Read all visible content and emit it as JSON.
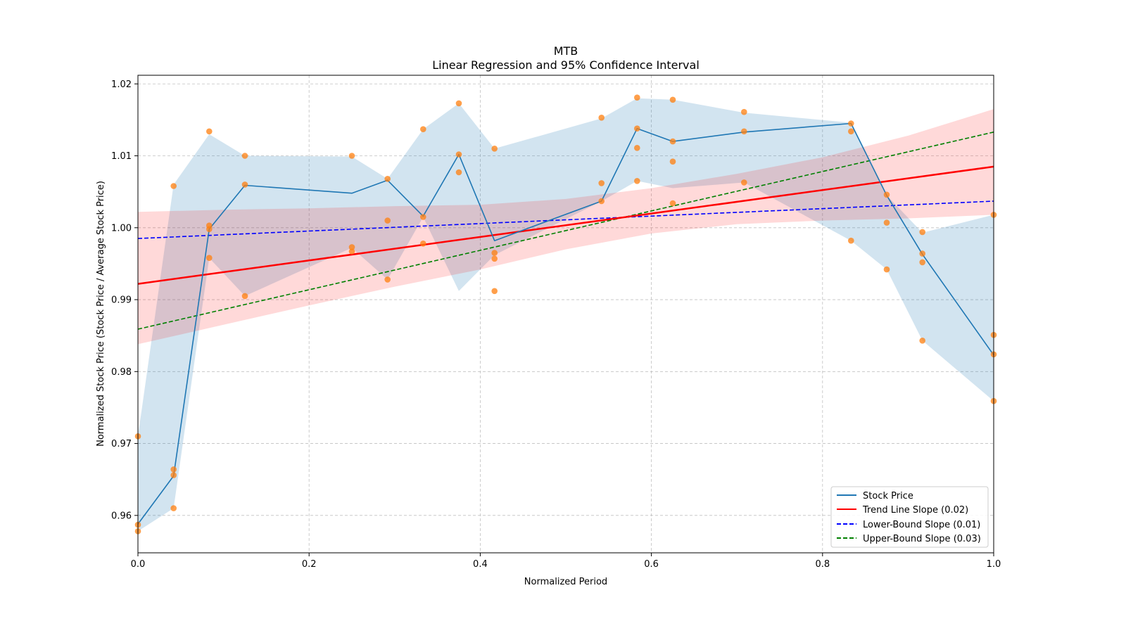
{
  "chart_data": {
    "type": "line",
    "title": "MTB",
    "subtitle": "Linear Regression and 95% Confidence Interval",
    "xlabel": "Normalized Period",
    "ylabel": "Normalized Stock Price (Stock Price / Average Stock Price)",
    "xlim": [
      0.0,
      1.0
    ],
    "ylim": [
      0.9548,
      1.0212
    ],
    "x_ticks": [
      "0.0",
      "0.2",
      "0.4",
      "0.6",
      "0.8",
      "1.0"
    ],
    "y_ticks": [
      "0.96",
      "0.97",
      "0.98",
      "0.99",
      "1.00",
      "1.01",
      "1.02"
    ],
    "grid": true,
    "legend_position": "lower-right",
    "colors": {
      "stock": "#1f77b4",
      "stock_band": "#1f77b4",
      "trend": "#ff0000",
      "trend_band": "#ff0000",
      "lower": "#0000ff",
      "upper": "#008000",
      "scatter": "#ff7f0e",
      "grid": "#b0b0b0"
    },
    "series": [
      {
        "name": "Stock Price",
        "kind": "line",
        "x": [
          0.0,
          0.0417,
          0.0833,
          0.125,
          0.25,
          0.2917,
          0.3333,
          0.375,
          0.4167,
          0.5417,
          0.5833,
          0.625,
          0.7083,
          0.8333,
          0.875,
          0.9167,
          1.0
        ],
        "y": [
          0.9588,
          0.9655,
          0.9998,
          1.0059,
          1.0048,
          1.0066,
          1.0016,
          1.0102,
          0.9982,
          1.0037,
          1.0138,
          1.012,
          1.0133,
          1.0145,
          1.0045,
          0.9963,
          0.9823
        ]
      },
      {
        "name": "Trend Line Slope (0.02)",
        "kind": "line",
        "x": [
          0.0,
          1.0
        ],
        "y": [
          0.9922,
          1.0085
        ]
      },
      {
        "name": "Lower-Bound Slope (0.01)",
        "kind": "dashed",
        "x": [
          0.0,
          1.0
        ],
        "y": [
          0.9985,
          1.0037
        ]
      },
      {
        "name": "Upper-Bound Slope (0.03)",
        "kind": "dashed",
        "x": [
          0.0,
          1.0
        ],
        "y": [
          0.9859,
          1.0133
        ]
      }
    ],
    "stock_band": {
      "x": [
        0.0,
        0.0417,
        0.0833,
        0.125,
        0.25,
        0.2917,
        0.3333,
        0.375,
        0.4167,
        0.5417,
        0.5833,
        0.625,
        0.7083,
        0.8333,
        0.875,
        0.9167,
        1.0
      ],
      "upper": [
        0.971,
        1.006,
        1.013,
        1.01,
        1.0099,
        1.0068,
        1.0137,
        1.0173,
        1.011,
        1.0152,
        1.018,
        1.0178,
        1.016,
        1.0146,
        1.0045,
        0.9993,
        1.0018
      ],
      "lower": [
        0.9578,
        0.961,
        0.9958,
        0.9905,
        0.9972,
        0.9928,
        1.0015,
        0.9912,
        0.9962,
        1.0037,
        1.0065,
        1.0055,
        1.0063,
        0.9982,
        0.9942,
        0.9843,
        0.9759
      ]
    },
    "trend_band": {
      "x": [
        0.0,
        0.1,
        0.2,
        0.3,
        0.4,
        0.5,
        0.6,
        0.7,
        0.8,
        0.9,
        1.0
      ],
      "upper": [
        1.0022,
        1.0025,
        1.0027,
        1.003,
        1.0032,
        1.004,
        1.0055,
        1.0075,
        1.0098,
        1.0128,
        1.0165
      ],
      "lower": [
        0.9838,
        0.9865,
        0.9892,
        0.9918,
        0.9942,
        0.997,
        0.9992,
        1.0005,
        1.001,
        1.0013,
        1.0018
      ]
    },
    "scatter": {
      "name": "Stock observations",
      "x": [
        0.0,
        0.0,
        0.0,
        0.0417,
        0.0417,
        0.0417,
        0.0417,
        0.0833,
        0.0833,
        0.0833,
        0.0833,
        0.125,
        0.125,
        0.125,
        0.25,
        0.25,
        0.25,
        0.2917,
        0.2917,
        0.2917,
        0.3333,
        0.3333,
        0.3333,
        0.375,
        0.375,
        0.375,
        0.4167,
        0.4167,
        0.4167,
        0.4167,
        0.5417,
        0.5417,
        0.5417,
        0.5833,
        0.5833,
        0.5833,
        0.5833,
        0.625,
        0.625,
        0.625,
        0.625,
        0.7083,
        0.7083,
        0.7083,
        0.8333,
        0.8333,
        0.8333,
        0.875,
        0.875,
        0.875,
        0.9167,
        0.9167,
        0.9167,
        0.9167,
        1.0,
        1.0,
        1.0,
        1.0
      ],
      "y": [
        0.971,
        0.9587,
        0.9578,
        1.0058,
        0.9664,
        0.9656,
        0.961,
        1.0134,
        1.0003,
        0.9998,
        0.9958,
        1.01,
        1.006,
        0.9905,
        1.01,
        0.9973,
        0.9967,
        1.0068,
        1.001,
        0.9928,
        1.0137,
        1.0015,
        0.9978,
        1.0173,
        1.0102,
        1.0077,
        0.9912,
        1.011,
        0.9965,
        0.9957,
        1.0153,
        1.0062,
        1.0037,
        1.0181,
        1.0138,
        1.0111,
        1.0065,
        1.0178,
        1.012,
        1.0092,
        1.0034,
        1.0161,
        1.0134,
        1.0063,
        1.0145,
        1.0134,
        0.9982,
        1.0046,
        1.0007,
        0.9942,
        0.9994,
        0.9964,
        0.9952,
        0.9843,
        1.0018,
        0.9851,
        0.9824,
        0.9759
      ]
    }
  }
}
